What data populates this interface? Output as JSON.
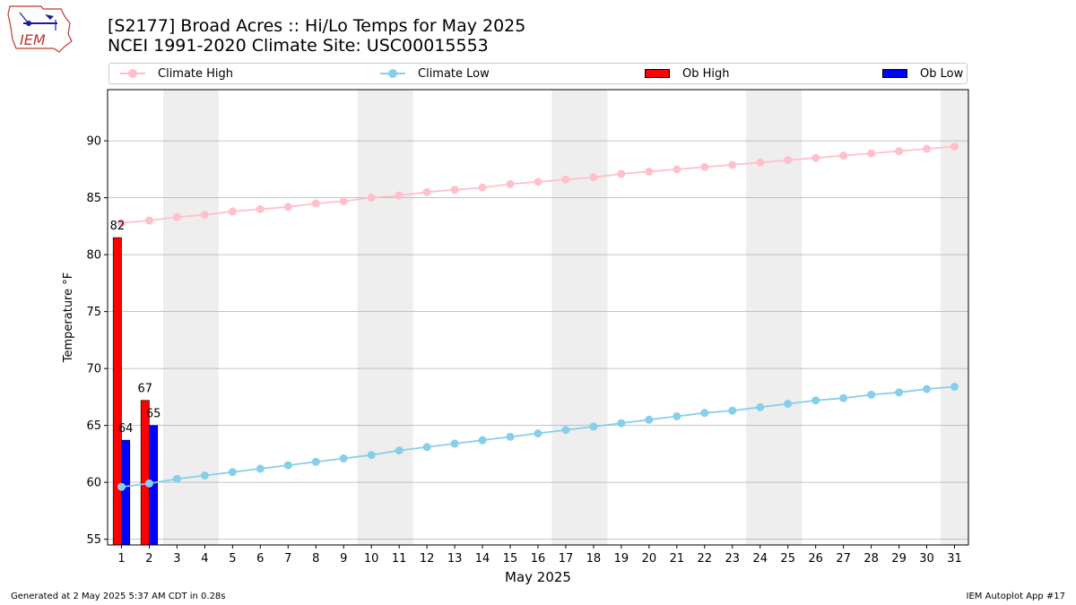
{
  "header": {
    "title_line1": "[S2177] Broad Acres :: Hi/Lo Temps for May 2025",
    "title_line2": "NCEI 1991-2020 Climate Site: USC00015553"
  },
  "logo": {
    "text": "IEM"
  },
  "legend": {
    "climate_high": "Climate High",
    "climate_low": "Climate Low",
    "ob_high": "Ob High",
    "ob_low": "Ob Low"
  },
  "footer": {
    "generated": "Generated at 2 May 2025 5:37 AM CDT in 0.28s",
    "app": "IEM Autoplot App #17"
  },
  "colors": {
    "climate_high": "#ffc0cb",
    "climate_low": "#87ceeb",
    "ob_high": "#ff0000",
    "ob_low": "#0000ff",
    "weekend_band": "#eeeeee",
    "grid": "#b0b0b0"
  },
  "chart_data": {
    "type": "bar",
    "title": "[S2177] Broad Acres :: Hi/Lo Temps for May 2025",
    "subtitle": "NCEI 1991-2020 Climate Site: USC00015553",
    "xlabel": "May 2025",
    "ylabel": "Temperature °F",
    "xlim": [
      0.5,
      31.5
    ],
    "ylim": [
      54.5,
      94.5
    ],
    "yticks": [
      55,
      60,
      65,
      70,
      75,
      80,
      85,
      90
    ],
    "grid": "horizontal",
    "legend_placement": "top",
    "x": [
      1,
      2,
      3,
      4,
      5,
      6,
      7,
      8,
      9,
      10,
      11,
      12,
      13,
      14,
      15,
      16,
      17,
      18,
      19,
      20,
      21,
      22,
      23,
      24,
      25,
      26,
      27,
      28,
      29,
      30,
      31
    ],
    "weekend_bands": [
      [
        2.5,
        4.5
      ],
      [
        9.5,
        11.5
      ],
      [
        16.5,
        18.5
      ],
      [
        23.5,
        25.5
      ],
      [
        30.5,
        31.5
      ]
    ],
    "series": [
      {
        "name": "Climate High",
        "kind": "line",
        "values": [
          82.8,
          83.0,
          83.3,
          83.5,
          83.8,
          84.0,
          84.2,
          84.5,
          84.7,
          85.0,
          85.2,
          85.5,
          85.7,
          85.9,
          86.2,
          86.4,
          86.6,
          86.8,
          87.1,
          87.3,
          87.5,
          87.7,
          87.9,
          88.1,
          88.3,
          88.5,
          88.7,
          88.9,
          89.1,
          89.3,
          89.5
        ]
      },
      {
        "name": "Climate Low",
        "kind": "line",
        "values": [
          59.6,
          59.9,
          60.3,
          60.6,
          60.9,
          61.2,
          61.5,
          61.8,
          62.1,
          62.4,
          62.8,
          63.1,
          63.4,
          63.7,
          64.0,
          64.3,
          64.6,
          64.9,
          65.2,
          65.5,
          65.8,
          66.1,
          66.3,
          66.6,
          66.9,
          67.2,
          67.4,
          67.7,
          67.9,
          68.2,
          68.4
        ]
      },
      {
        "name": "Ob High",
        "kind": "bar",
        "x": [
          1,
          2
        ],
        "values": [
          81.5,
          67.2
        ],
        "labels": [
          "82",
          "67"
        ]
      },
      {
        "name": "Ob Low",
        "kind": "bar",
        "x": [
          1,
          2
        ],
        "values": [
          63.7,
          65.0
        ],
        "labels": [
          "64",
          "65"
        ]
      }
    ]
  }
}
